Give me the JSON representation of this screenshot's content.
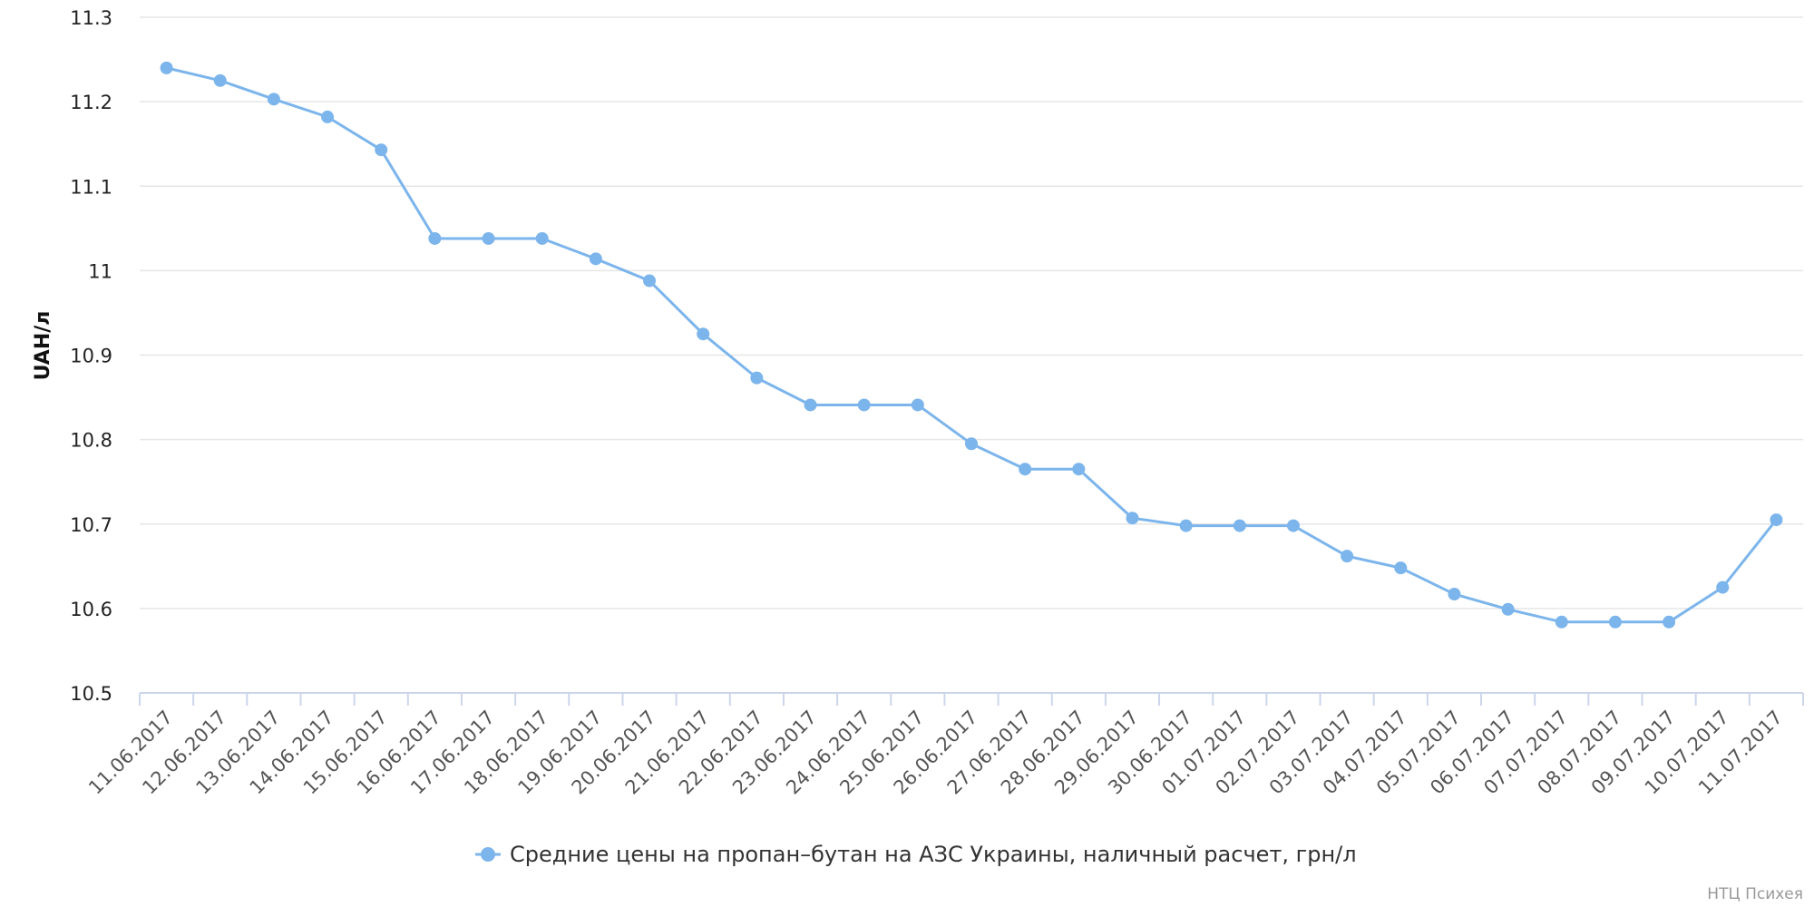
{
  "chart_data": {
    "type": "line",
    "ylabel": "UAH/л",
    "ylim": [
      10.5,
      11.3
    ],
    "yticks": [
      "11.3",
      "11.2",
      "11.1",
      "11",
      "10.9",
      "10.8",
      "10.7",
      "10.6",
      "10.5"
    ],
    "ytick_values": [
      11.3,
      11.2,
      11.1,
      11.0,
      10.9,
      10.8,
      10.7,
      10.6,
      10.5
    ],
    "grid": true,
    "legend_position": "bottom-center",
    "categories": [
      "11.06.2017",
      "12.06.2017",
      "13.06.2017",
      "14.06.2017",
      "15.06.2017",
      "16.06.2017",
      "17.06.2017",
      "18.06.2017",
      "19.06.2017",
      "20.06.2017",
      "21.06.2017",
      "22.06.2017",
      "23.06.2017",
      "24.06.2017",
      "25.06.2017",
      "26.06.2017",
      "27.06.2017",
      "28.06.2017",
      "29.06.2017",
      "30.06.2017",
      "01.07.2017",
      "02.07.2017",
      "03.07.2017",
      "04.07.2017",
      "05.07.2017",
      "06.07.2017",
      "07.07.2017",
      "08.07.2017",
      "09.07.2017",
      "10.07.2017",
      "11.07.2017"
    ],
    "series": [
      {
        "name": "Средние цены на пропан–бутан на АЗС Украины, наличный расчет, грн/л",
        "color": "#7cb5ec",
        "values": [
          11.24,
          11.225,
          11.203,
          11.182,
          11.143,
          11.038,
          11.038,
          11.038,
          11.014,
          10.988,
          10.925,
          10.873,
          10.841,
          10.841,
          10.841,
          10.795,
          10.765,
          10.765,
          10.707,
          10.698,
          10.698,
          10.698,
          10.662,
          10.648,
          10.617,
          10.599,
          10.584,
          10.584,
          10.584,
          10.625,
          10.705
        ]
      }
    ]
  },
  "credit": "НТЦ Психея",
  "colors": {
    "grid": "#e6e6e6",
    "axis": "#ccd6eb",
    "series": "#7cb5ec"
  }
}
